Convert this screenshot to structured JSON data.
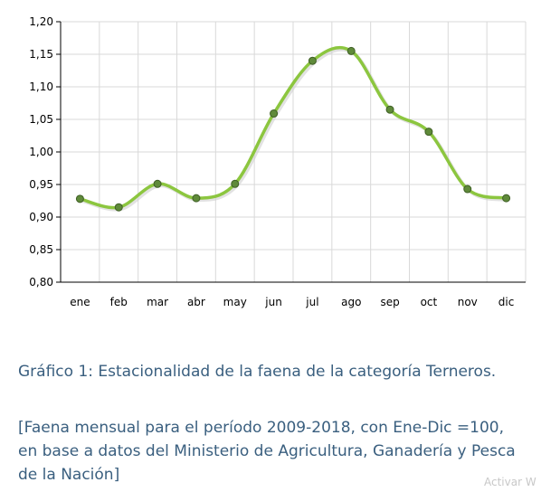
{
  "chart_data": {
    "type": "line",
    "categories": [
      "ene",
      "feb",
      "mar",
      "abr",
      "may",
      "jun",
      "jul",
      "ago",
      "sep",
      "oct",
      "nov",
      "dic"
    ],
    "values": [
      0.928,
      0.915,
      0.951,
      0.929,
      0.951,
      1.059,
      1.14,
      1.155,
      1.065,
      1.031,
      0.943,
      0.929
    ],
    "ylim": [
      0.8,
      1.2
    ],
    "yticks": [
      "0,80",
      "0,85",
      "0,90",
      "0,95",
      "1,00",
      "1,05",
      "1,10",
      "1,15",
      "1,20"
    ],
    "grid": true,
    "smooth": true,
    "colors": {
      "line": "#8cc63f",
      "marker": "#5f8a3a",
      "marker_edge": "#3f5f25",
      "grid": "#d9d9d9",
      "axis": "#000000"
    }
  },
  "caption": {
    "title": "Gráfico 1: Estacionalidad de la faena de la categoría Terneros.",
    "subtitle": "[Faena mensual para el período 2009-2018, con Ene-Dic =100, en base a datos del Ministerio de Agricultura, Ganadería y Pesca de la Nación]"
  },
  "watermark": "Activar W"
}
